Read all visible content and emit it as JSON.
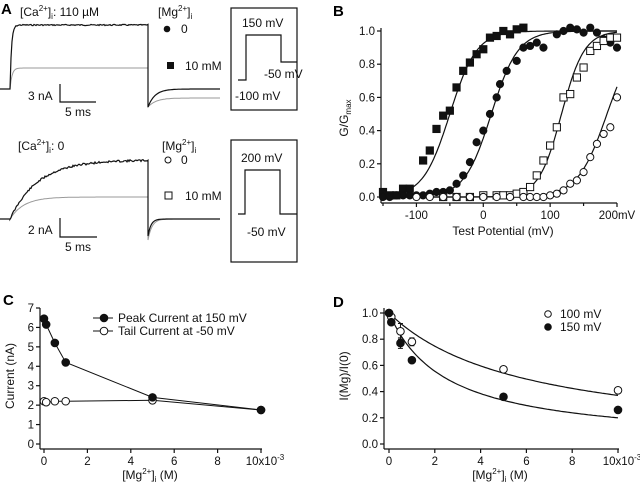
{
  "colors": {
    "ink": "#111111",
    "gray_trace": "#9a9a9a"
  },
  "panel_A": {
    "letter": "A",
    "top": {
      "ca_label": {
        "base": "[Ca",
        "sup": "2+",
        "close": "]",
        "sub": "i",
        "rest": ": 110 µM"
      },
      "legend_title": {
        "base": "[Mg",
        "sup": "2+",
        "close": "]",
        "sub": "i"
      },
      "legend": [
        {
          "marker": "filled-circle",
          "label": "0"
        },
        {
          "marker": "filled-square",
          "label": "10 mM"
        }
      ],
      "scale_current": "3 nA",
      "scale_time": "5 ms",
      "protocol": {
        "step": "150 mV",
        "tail": "-50 mV",
        "holding": "-100 mV"
      }
    },
    "bottom": {
      "ca_label": {
        "base": "[Ca",
        "sup": "2+",
        "close": "]",
        "sub": "i",
        "rest": ": 0"
      },
      "legend_title": {
        "base": "[Mg",
        "sup": "2+",
        "close": "]",
        "sub": "i"
      },
      "legend": [
        {
          "marker": "open-circle",
          "label": "0"
        },
        {
          "marker": "open-square",
          "label": "10 mM"
        }
      ],
      "scale_current": "2 nA",
      "scale_time": "5 ms",
      "protocol": {
        "step": "200 mV",
        "tail": "-50 mV"
      }
    }
  },
  "chart_data": [
    {
      "panel": "B",
      "type": "scatter",
      "xlabel": "Test Potential (mV)",
      "ylabel": {
        "base": "G/G",
        "sub": "max"
      },
      "xlim": [
        -150,
        200
      ],
      "ylim": [
        0,
        1.0
      ],
      "xticks": [
        -100,
        0,
        100,
        200
      ],
      "xtick_labels": [
        "-100",
        "0",
        "100",
        "200mV"
      ],
      "yticks": [
        "0.0",
        "0.2",
        "0.4",
        "0.6",
        "0.8",
        "1.0"
      ],
      "grid": false,
      "series": [
        {
          "marker": "filled-square",
          "x": [
            -150,
            -140,
            -130,
            -120,
            -110,
            -90,
            -80,
            -70,
            -60,
            -50,
            -40,
            -30,
            -20,
            -10,
            0,
            10,
            20,
            30,
            40,
            50,
            60
          ],
          "y": [
            0.03,
            0.01,
            0.01,
            0.05,
            0.05,
            0.22,
            0.28,
            0.41,
            0.49,
            0.52,
            0.66,
            0.76,
            0.81,
            0.86,
            0.89,
            0.96,
            0.97,
            1.0,
            0.98,
            1.01,
            1.02
          ],
          "fit": {
            "vhalf": -50,
            "slope": 20
          }
        },
        {
          "marker": "filled-circle",
          "x": [
            -150,
            -140,
            -130,
            -120,
            -110,
            -100,
            -90,
            -80,
            -70,
            -60,
            -50,
            -40,
            -30,
            -20,
            -10,
            0,
            10,
            20,
            25,
            35,
            50,
            60,
            70,
            80,
            90,
            110,
            120,
            130,
            140,
            150,
            160,
            170,
            180,
            190,
            200
          ],
          "y": [
            0,
            0,
            0.01,
            0.01,
            0.01,
            0.01,
            0.01,
            0.02,
            0.03,
            0.03,
            0.04,
            0.08,
            0.13,
            0.21,
            0.33,
            0.4,
            0.5,
            0.6,
            0.68,
            0.76,
            0.82,
            0.9,
            0.91,
            0.93,
            0.9,
            0.98,
            1.0,
            1.02,
            1.01,
            0.99,
            1.02,
            0.99,
            0.95,
            0.93,
            0.9
          ],
          "fit": {
            "vhalf": 12,
            "slope": 20
          }
        },
        {
          "marker": "open-square",
          "x": [
            -60,
            -40,
            -20,
            0,
            20,
            30,
            40,
            50,
            60,
            70,
            80,
            90,
            100,
            110,
            120,
            130,
            140,
            150,
            160,
            170,
            180,
            190,
            200
          ],
          "y": [
            0,
            0,
            0,
            0.01,
            0.01,
            0.01,
            0.01,
            0.02,
            0.03,
            0.06,
            0.13,
            0.22,
            0.31,
            0.42,
            0.6,
            0.62,
            0.72,
            0.78,
            0.88,
            0.91,
            0.94,
            0.96,
            0.96
          ],
          "fit": {
            "vhalf": 117,
            "slope": 17
          }
        },
        {
          "marker": "open-circle",
          "x": [
            -100,
            -80,
            -60,
            -40,
            -20,
            0,
            20,
            40,
            60,
            70,
            80,
            90,
            100,
            110,
            120,
            130,
            140,
            150,
            160,
            170,
            180,
            190,
            200
          ],
          "y": [
            0,
            0,
            0,
            0,
            0,
            0,
            0,
            0,
            0,
            0,
            0,
            0,
            0.01,
            0.02,
            0.04,
            0.08,
            0.1,
            0.15,
            0.24,
            0.32,
            0.38,
            0.42,
            0.6
          ],
          "fit": {
            "vhalf": 185,
            "slope": 22
          }
        }
      ]
    },
    {
      "panel": "C",
      "type": "line",
      "xlabel": {
        "base": "[Mg",
        "sup": "2+",
        "close": "]",
        "sub": "i",
        "rest": " (M)"
      },
      "ylabel": "Current (nA)",
      "xlim": [
        0,
        0.01
      ],
      "ylim": [
        0,
        7
      ],
      "xtick_labels": [
        "0",
        "2",
        "4",
        "6",
        "8",
        "10x10"
      ],
      "xtick_exponent": "-3",
      "yticks": [
        "0",
        "1",
        "2",
        "3",
        "4",
        "5",
        "6",
        "7"
      ],
      "grid": false,
      "legend_placement": "top-center",
      "x": [
        0,
        0.0001,
        0.0005,
        0.001,
        0.005,
        0.01
      ],
      "series": [
        {
          "name": "Peak Current at 150 mV",
          "marker": "filled-circle",
          "values": [
            6.45,
            6.15,
            5.2,
            4.2,
            2.4,
            1.75
          ]
        },
        {
          "name": "Tail Current at -50 mV",
          "marker": "open-circle",
          "values": [
            2.2,
            2.15,
            2.2,
            2.2,
            2.25,
            1.75
          ]
        }
      ]
    },
    {
      "panel": "D",
      "type": "scatter",
      "xlabel": {
        "base": "[Mg",
        "sup": "2+",
        "close": "]",
        "sub": "i",
        "rest": " (M)"
      },
      "ylabel": "I(Mg)/I(0)",
      "xlim": [
        0,
        0.01
      ],
      "ylim": [
        0,
        1.0
      ],
      "xtick_labels": [
        "0",
        "2",
        "4",
        "6",
        "8",
        "10x10"
      ],
      "xtick_exponent": "-3",
      "yticks": [
        "0.0",
        "0.2",
        "0.4",
        "0.6",
        "0.8",
        "1.0"
      ],
      "grid": false,
      "legend_placement": "top-right",
      "x": [
        0,
        0.0001,
        0.0005,
        0.001,
        0.005,
        0.01
      ],
      "series": [
        {
          "name": "100 mV",
          "marker": "open-circle",
          "values": [
            1.0,
            0.97,
            0.86,
            0.78,
            0.57,
            0.41
          ],
          "error": [
            0.02,
            0.02,
            0.06,
            0.03,
            0.02,
            0.02
          ],
          "fit": {
            "kd": 0.0059
          }
        },
        {
          "name": "150 mV",
          "marker": "filled-circle",
          "values": [
            1.0,
            0.93,
            0.77,
            0.64,
            0.36,
            0.26
          ],
          "error": [
            0.02,
            0.02,
            0.04,
            0.01,
            0.01,
            0.01
          ],
          "fit": {
            "kd": 0.0025
          }
        }
      ]
    }
  ]
}
